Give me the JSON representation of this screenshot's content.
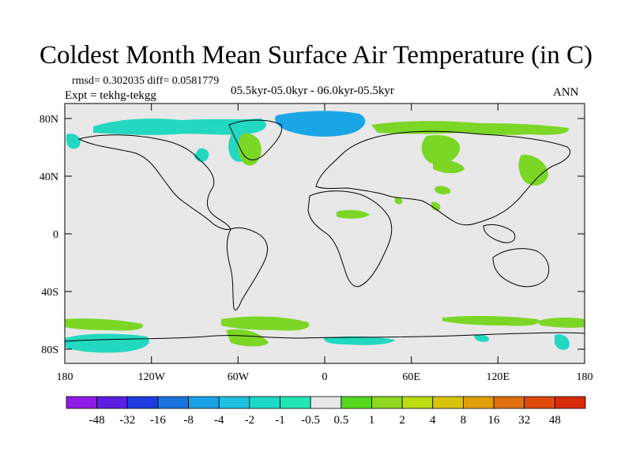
{
  "figure": {
    "title": "Coldest Month Mean Surface Air Temperature (in C)",
    "stats": "rmsd= 0.302035 diff= 0.0581779",
    "experiment": "Expt = tekhg-tekgg",
    "period": "05.5kyr-05.0kyr - 06.0kyr-05.5kyr",
    "season": "ANN"
  },
  "axes": {
    "x_ticks": [
      "180",
      "120W",
      "60W",
      "0",
      "60E",
      "120E",
      "180"
    ],
    "y_ticks": [
      "80N",
      "40N",
      "0",
      "40S",
      "80S"
    ]
  },
  "colorbar": {
    "labels": [
      "-48",
      "-32",
      "-16",
      "-8",
      "-4",
      "-2",
      "-1",
      "-0.5",
      "0.5",
      "1",
      "2",
      "4",
      "8",
      "16",
      "32",
      "48"
    ],
    "colors": [
      "#8f1be6",
      "#5a1fe0",
      "#1f3ce0",
      "#1b74e0",
      "#1aa0e6",
      "#1fc0e0",
      "#1ed8c8",
      "#22e6b4",
      "#e8e8e8",
      "#55d81e",
      "#8fd81e",
      "#bcdc14",
      "#d8c40c",
      "#e0a00c",
      "#e07010",
      "#e04a0c",
      "#d82a0a"
    ]
  },
  "map": {
    "background": "#e8e8e8",
    "cool_color": "#22d8c0",
    "cold_color": "#1aa6e6",
    "warm_color": "#7cd626",
    "land_outline": "#000000"
  }
}
